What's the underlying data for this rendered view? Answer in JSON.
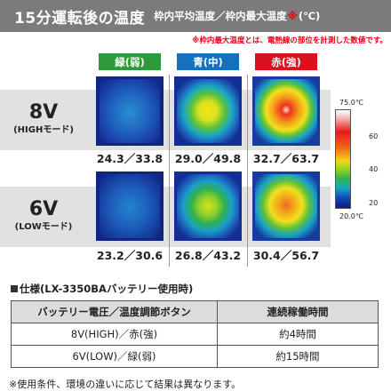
{
  "header": {
    "title": "15分運転後の温度",
    "subtitle_a": "枠内平均温度／枠内最大温度",
    "star": "※",
    "subtitle_unit": "(℃)"
  },
  "note_top": "※枠内最大温度とは、電熱線の部位を計測した数値です。",
  "columns": [
    {
      "label": "緑(弱)",
      "color": "#2e9a3a"
    },
    {
      "label": "青(中)",
      "color": "#1570c0"
    },
    {
      "label": "赤(強)",
      "color": "#d9121e"
    }
  ],
  "rows": [
    {
      "voltage": "8V",
      "mode": "(HIGHモード)",
      "readings": [
        "24.3／33.8",
        "29.0／49.8",
        "32.7／63.7"
      ]
    },
    {
      "voltage": "6V",
      "mode": "(LOWモード)",
      "readings": [
        "23.2／30.6",
        "26.8／43.2",
        "30.4／56.7"
      ]
    }
  ],
  "scale": {
    "max_label": "75.0℃",
    "min_label": "20.0℃",
    "ticks": [
      "60",
      "40",
      "20"
    ]
  },
  "spec": {
    "heading": "仕様(LX-3350BAバッテリー使用時)",
    "table": {
      "headers": [
        "バッテリー電圧／温度調節ボタン",
        "連続稼働時間"
      ],
      "rows": [
        [
          "8V(HIGH)／赤(強)",
          "約4時間"
        ],
        [
          "6V(LOW)／緑(弱)",
          "約15時間"
        ]
      ]
    }
  },
  "footnote": "※使用条件、環境の違いに応じて結果は異なります。"
}
